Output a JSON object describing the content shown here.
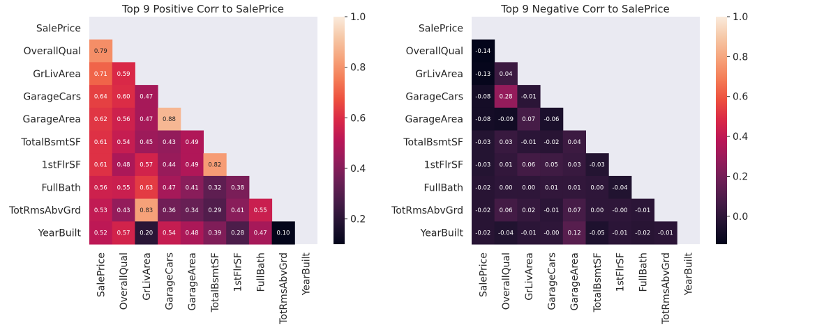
{
  "chart_data": [
    {
      "type": "heatmap",
      "title": "Top 9 Positive Corr to SalePrice",
      "xlabel": "",
      "ylabel": "",
      "masked": "upper-triangle-and-diagonal",
      "annotation_format": "0.00",
      "labels": [
        "SalePrice",
        "OverallQual",
        "GrLivArea",
        "GarageCars",
        "GarageArea",
        "TotalBsmtSF",
        "1stFlrSF",
        "FullBath",
        "TotRmsAbvGrd",
        "YearBuilt"
      ],
      "rows": [
        [],
        [
          0.79
        ],
        [
          0.71,
          0.59
        ],
        [
          0.64,
          0.6,
          0.47
        ],
        [
          0.62,
          0.56,
          0.47,
          0.88
        ],
        [
          0.61,
          0.54,
          0.45,
          0.43,
          0.49
        ],
        [
          0.61,
          0.48,
          0.57,
          0.44,
          0.49,
          0.82
        ],
        [
          0.56,
          0.55,
          0.63,
          0.47,
          0.41,
          0.32,
          0.38
        ],
        [
          0.53,
          0.43,
          0.83,
          0.36,
          0.34,
          0.29,
          0.41,
          0.55
        ],
        [
          0.52,
          0.57,
          0.2,
          0.54,
          0.48,
          0.39,
          0.28,
          0.47,
          0.1
        ]
      ],
      "colorbar": {
        "cmap": "rocket",
        "vmin": 0.1,
        "vmax": 1.0,
        "ticks": [
          "0.2",
          "0.4",
          "0.6",
          "0.8",
          "1.0"
        ],
        "tick_values": [
          0.2,
          0.4,
          0.6,
          0.8,
          1.0
        ]
      }
    },
    {
      "type": "heatmap",
      "title": "Top 9 Negative Corr to SalePrice",
      "xlabel": "",
      "ylabel": "",
      "masked": "upper-triangle-and-diagonal",
      "annotation_format": "0.00",
      "labels": [
        "SalePrice",
        "OverallQual",
        "GrLivArea",
        "GarageCars",
        "GarageArea",
        "TotalBsmtSF",
        "1stFlrSF",
        "FullBath",
        "TotRmsAbvGrd",
        "YearBuilt"
      ],
      "rows": [
        [],
        [
          -0.14
        ],
        [
          -0.13,
          0.04
        ],
        [
          -0.08,
          0.28,
          -0.01
        ],
        [
          -0.08,
          -0.09,
          0.07,
          -0.06
        ],
        [
          -0.03,
          0.03,
          -0.01,
          -0.02,
          0.04
        ],
        [
          -0.03,
          0.01,
          0.06,
          0.05,
          0.03,
          -0.03
        ],
        [
          -0.02,
          0.0,
          0.0,
          0.01,
          0.01,
          0.0,
          -0.04
        ],
        [
          -0.02,
          0.06,
          0.02,
          -0.01,
          0.07,
          0.0,
          -0.0,
          -0.01
        ],
        [
          -0.02,
          -0.04,
          -0.01,
          -0.0,
          0.12,
          -0.05,
          -0.01,
          -0.02,
          -0.01
        ]
      ],
      "colorbar": {
        "cmap": "rocket",
        "vmin": -0.14,
        "vmax": 1.0,
        "ticks": [
          "0.0",
          "0.2",
          "0.4",
          "0.6",
          "0.8",
          "1.0"
        ],
        "tick_values": [
          0.0,
          0.2,
          0.4,
          0.6,
          0.8,
          1.0
        ]
      }
    }
  ],
  "colors": {
    "axes_background": "#eaeaf2",
    "text": "#262626",
    "rocket_stops": [
      "#03051a",
      "#221331",
      "#451c47",
      "#691f55",
      "#921c5b",
      "#b91657",
      "#d92847",
      "#ed503e",
      "#f47d57",
      "#f6a47c",
      "#f6c8a7",
      "#faebdd"
    ]
  }
}
